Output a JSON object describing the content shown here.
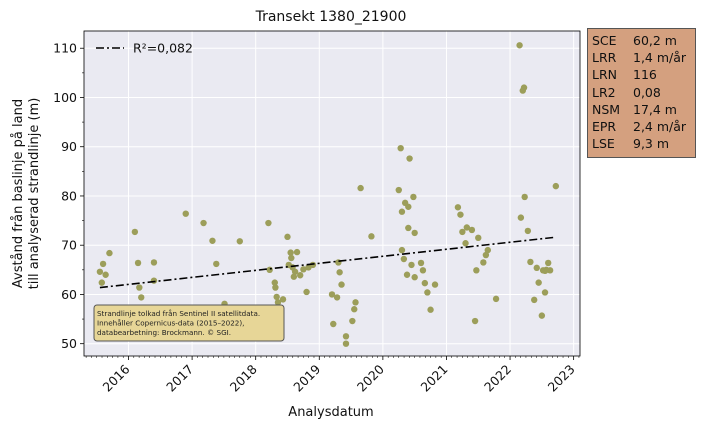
{
  "chart_data": {
    "type": "scatter",
    "title": "Transekt 1380_21900",
    "xlabel": "Analysdatum",
    "ylabel": "Avstånd från baslinje på land\ntill analyserad strandlinje (m)",
    "xlim": [
      2015.3,
      2023.1
    ],
    "ylim": [
      47.5,
      113.5
    ],
    "xticks": [
      "2016",
      "2017",
      "2018",
      "2019",
      "2020",
      "2021",
      "2022",
      "2023"
    ],
    "yticks": [
      50,
      60,
      70,
      80,
      90,
      100,
      110
    ],
    "grid": true,
    "legend": {
      "placement": "top-left",
      "entries": [
        {
          "label": "R²=0,082",
          "style": "dash-dot"
        }
      ]
    },
    "trendline": {
      "x": [
        2015.55,
        2022.7
      ],
      "y": [
        61.4,
        71.6
      ],
      "color": "#000000"
    },
    "point_color": "#9c9e5a",
    "points": [
      [
        2015.55,
        64.6
      ],
      [
        2015.58,
        62.4
      ],
      [
        2015.6,
        66.2
      ],
      [
        2015.64,
        64.0
      ],
      [
        2015.7,
        68.4
      ],
      [
        2016.1,
        72.7
      ],
      [
        2016.15,
        66.4
      ],
      [
        2016.17,
        61.4
      ],
      [
        2016.2,
        59.4
      ],
      [
        2016.4,
        66.5
      ],
      [
        2016.4,
        62.8
      ],
      [
        2016.9,
        76.4
      ],
      [
        2017.18,
        74.5
      ],
      [
        2017.32,
        70.9
      ],
      [
        2017.38,
        66.2
      ],
      [
        2017.5,
        57.5
      ],
      [
        2017.51,
        58.1
      ],
      [
        2017.75,
        70.8
      ],
      [
        2018.2,
        74.5
      ],
      [
        2018.22,
        65.0
      ],
      [
        2018.3,
        62.4
      ],
      [
        2018.31,
        61.4
      ],
      [
        2018.33,
        59.5
      ],
      [
        2018.35,
        58.4
      ],
      [
        2018.36,
        56.5
      ],
      [
        2018.38,
        55.8
      ],
      [
        2018.43,
        59.0
      ],
      [
        2018.5,
        71.7
      ],
      [
        2018.52,
        66.0
      ],
      [
        2018.55,
        68.5
      ],
      [
        2018.56,
        67.4
      ],
      [
        2018.58,
        65.5
      ],
      [
        2018.6,
        63.6
      ],
      [
        2018.62,
        64.6
      ],
      [
        2018.65,
        68.6
      ],
      [
        2018.7,
        63.9
      ],
      [
        2018.75,
        65.1
      ],
      [
        2018.8,
        60.5
      ],
      [
        2018.83,
        65.5
      ],
      [
        2018.9,
        66.0
      ],
      [
        2019.2,
        60.0
      ],
      [
        2019.22,
        54.0
      ],
      [
        2019.28,
        59.4
      ],
      [
        2019.3,
        66.5
      ],
      [
        2019.32,
        64.5
      ],
      [
        2019.35,
        62.0
      ],
      [
        2019.42,
        50.0
      ],
      [
        2019.42,
        51.5
      ],
      [
        2019.52,
        54.6
      ],
      [
        2019.55,
        57.0
      ],
      [
        2019.57,
        58.4
      ],
      [
        2019.65,
        81.6
      ],
      [
        2019.82,
        71.8
      ],
      [
        2020.25,
        81.2
      ],
      [
        2020.28,
        89.7
      ],
      [
        2020.3,
        76.8
      ],
      [
        2020.3,
        69.0
      ],
      [
        2020.33,
        67.2
      ],
      [
        2020.35,
        78.6
      ],
      [
        2020.38,
        64.0
      ],
      [
        2020.4,
        73.5
      ],
      [
        2020.4,
        77.8
      ],
      [
        2020.42,
        87.6
      ],
      [
        2020.45,
        66.0
      ],
      [
        2020.48,
        79.8
      ],
      [
        2020.5,
        63.5
      ],
      [
        2020.5,
        72.5
      ],
      [
        2020.6,
        66.4
      ],
      [
        2020.63,
        64.9
      ],
      [
        2020.66,
        62.3
      ],
      [
        2020.7,
        60.4
      ],
      [
        2020.75,
        56.9
      ],
      [
        2020.82,
        62.0
      ],
      [
        2021.18,
        77.7
      ],
      [
        2021.22,
        76.2
      ],
      [
        2021.25,
        72.7
      ],
      [
        2021.3,
        70.4
      ],
      [
        2021.32,
        73.6
      ],
      [
        2021.4,
        73.1
      ],
      [
        2021.45,
        54.6
      ],
      [
        2021.47,
        64.9
      ],
      [
        2021.5,
        71.5
      ],
      [
        2021.58,
        66.5
      ],
      [
        2021.62,
        68.0
      ],
      [
        2021.65,
        69.0
      ],
      [
        2021.78,
        59.1
      ],
      [
        2022.15,
        110.6
      ],
      [
        2022.17,
        75.6
      ],
      [
        2022.2,
        101.4
      ],
      [
        2022.22,
        102.0
      ],
      [
        2022.23,
        79.8
      ],
      [
        2022.28,
        72.9
      ],
      [
        2022.32,
        66.6
      ],
      [
        2022.38,
        58.9
      ],
      [
        2022.42,
        65.4
      ],
      [
        2022.45,
        62.4
      ],
      [
        2022.5,
        55.7
      ],
      [
        2022.52,
        64.9
      ],
      [
        2022.55,
        60.4
      ],
      [
        2022.55,
        64.8
      ],
      [
        2022.57,
        65.0
      ],
      [
        2022.6,
        66.4
      ],
      [
        2022.63,
        64.9
      ],
      [
        2022.72,
        82.0
      ]
    ]
  },
  "source_note": {
    "lines": [
      "Strandlinje tolkad från Sentinel II satellitdata.",
      "Innehåller Copernicus-data (2015–2022),",
      "databearbetning: Brockmann. © SGI."
    ],
    "background": "#e7d697"
  },
  "stats": {
    "background": "#d4a07f",
    "rows": [
      {
        "name": "SCE",
        "value": "60,2 m"
      },
      {
        "name": "LRR",
        "value": "1,4 m/år"
      },
      {
        "name": "LRN",
        "value": "116"
      },
      {
        "name": "LR2",
        "value": "0,08"
      },
      {
        "name": "NSM",
        "value": "17,4 m"
      },
      {
        "name": "EPR",
        "value": "2,4 m/år"
      },
      {
        "name": "LSE",
        "value": "9,3 m"
      }
    ]
  }
}
